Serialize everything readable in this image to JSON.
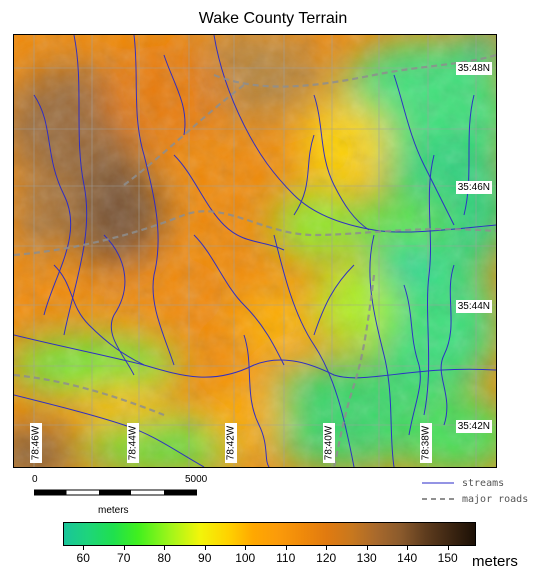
{
  "title": "Wake County Terrain",
  "latitude_labels": [
    "35:48N",
    "35:46N",
    "35:44N",
    "35:42N"
  ],
  "longitude_labels": [
    "78:46W",
    "78:44W",
    "78:42W",
    "78:40W",
    "78:38W"
  ],
  "scale": {
    "start": "0",
    "end": "5000",
    "units": "meters"
  },
  "legend": {
    "streams": {
      "label": "streams",
      "color": "#2a2ac8"
    },
    "roads": {
      "label": "major roads",
      "color": "#909090"
    }
  },
  "colorbar": {
    "ticks": [
      "60",
      "70",
      "80",
      "90",
      "100",
      "110",
      "120",
      "130",
      "140",
      "150"
    ],
    "units": "meters",
    "range": [
      55,
      157
    ]
  }
}
